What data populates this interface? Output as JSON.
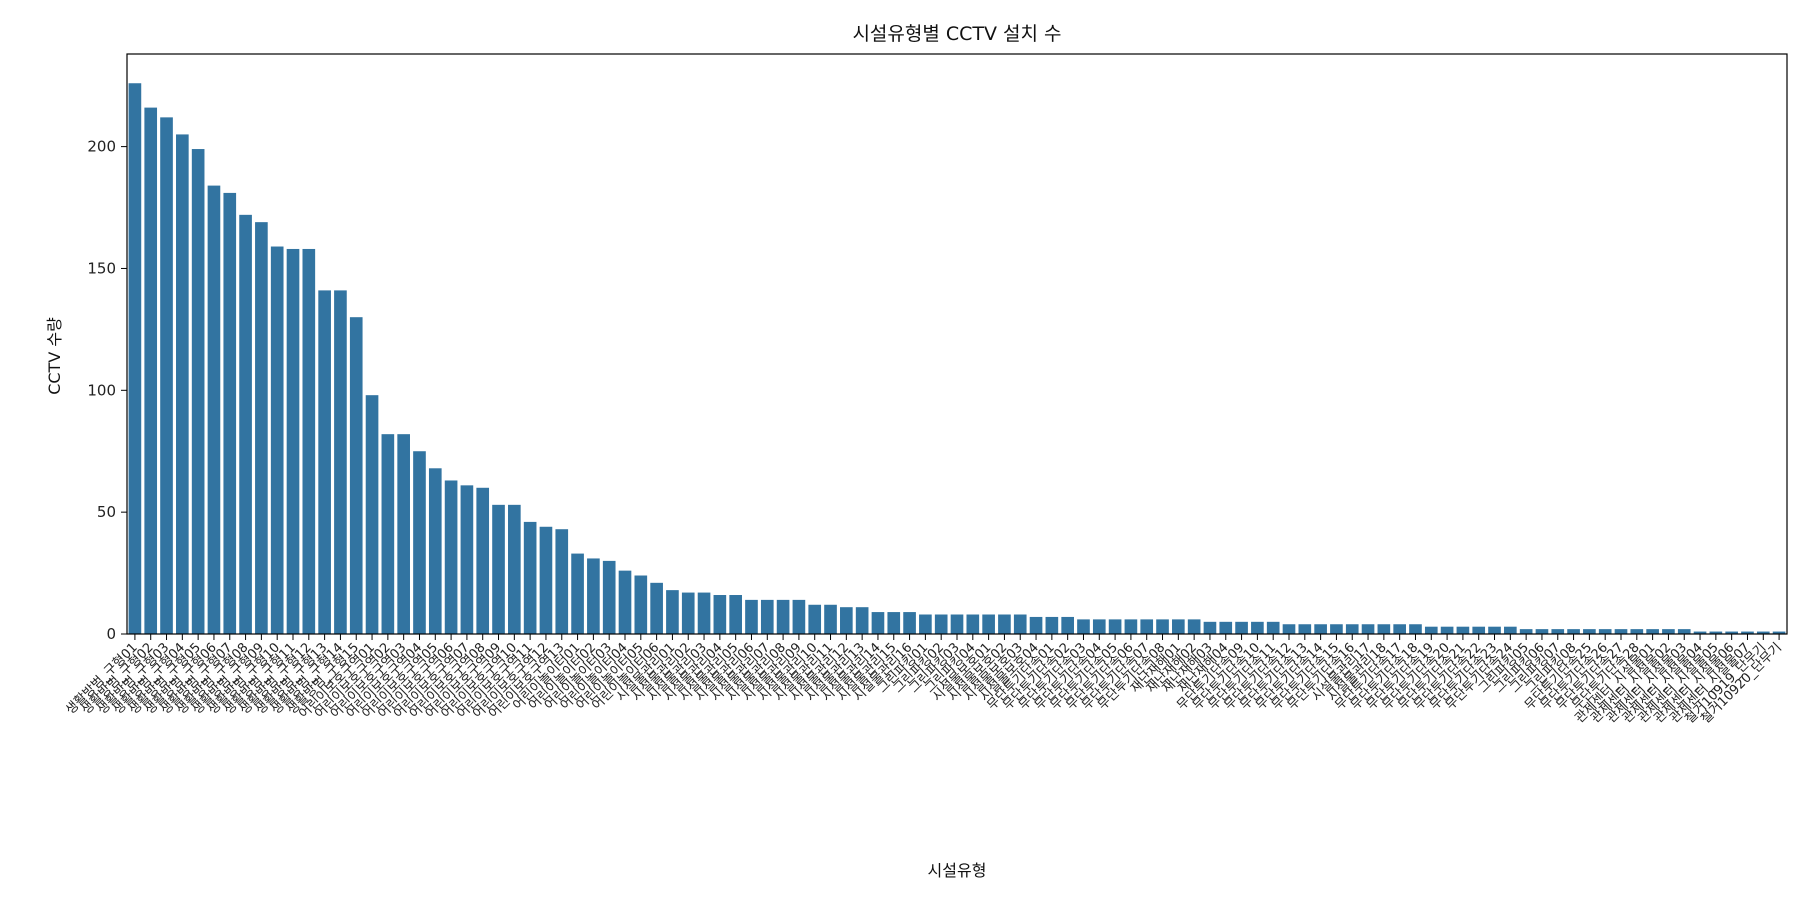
{
  "chart_data": {
    "type": "bar",
    "title": "시설유형별 CCTV 설치 수",
    "xlabel": "시설유형",
    "ylabel": "CCTV 수량",
    "ylim": [
      0,
      238
    ],
    "yticks": [
      0,
      50,
      100,
      150,
      200
    ],
    "grid": false,
    "legend": "none",
    "bar_color": "#3274a1",
    "categories": [
      "생활방범_구형01",
      "생활방범_구형02",
      "생활방범_구형03",
      "생활방범_구형04",
      "생활방범_구형05",
      "생활방범_구형06",
      "생활방범_구형07",
      "생활방범_구형08",
      "생활방범_구형09",
      "생활방범_구형10",
      "생활방범_구형11",
      "생활방범_구형12",
      "생활방범_구형13",
      "생활방범_구형14",
      "생활방범_구형15",
      "어린이보호구역01",
      "어린이보호구역02",
      "어린이보호구역03",
      "어린이보호구역04",
      "어린이보호구역05",
      "어린이보호구역06",
      "어린이보호구역07",
      "어린이보호구역08",
      "어린이보호구역09",
      "어린이보호구역10",
      "어린이보호구역11",
      "어린이보호구역12",
      "어린이보호구역13",
      "어린이놀이터01",
      "어린이놀이터02",
      "어린이놀이터03",
      "어린이놀이터04",
      "어린이놀이터05",
      "어린이놀이터06",
      "시설물관리01",
      "시설물관리02",
      "시설물관리03",
      "시설물관리04",
      "시설물관리05",
      "시설물관리06",
      "시설물관리07",
      "시설물관리08",
      "시설물관리09",
      "시설물관리10",
      "시설물관리11",
      "시설물관리12",
      "시설물관리13",
      "시설물관리14",
      "시설물관리15",
      "시설물관리16",
      "그린파킹01",
      "그린파킹02",
      "그린파킹03",
      "그린파킹04",
      "시설물보호01",
      "시설물보호02",
      "시설물보호03",
      "시설물보호04",
      "무단투기단속01",
      "무단투기단속02",
      "무단투기단속03",
      "무단투기단속04",
      "무단투기단속05",
      "무단투기단속06",
      "무단투기단속07",
      "무단투기단속08",
      "재난재해01",
      "재난재해02",
      "재난재해03",
      "재난재해04",
      "무단투기단속09",
      "무단투기단속10",
      "무단투기단속11",
      "무단투기단속12",
      "무단투기단속13",
      "무단투기단속14",
      "무단투기단속15",
      "무단투기단속16",
      "시설물관리17",
      "시설물관리18",
      "무단투기단속17",
      "무단투기단속18",
      "무단투기단속19",
      "무단투기단속20",
      "무단투기단속21",
      "무단투기단속22",
      "무단투기단속23",
      "무단투기단속24",
      "그린파킹05",
      "그린파킹06",
      "그린파킹07",
      "그린파킹08",
      "무단투기단속25",
      "무단투기단속26",
      "무단투기단속27",
      "무단투기단속28",
      "관제센터_시설물01",
      "관제센터_시설물02",
      "관제센터_시설물03",
      "관제센터_시설물04",
      "관제센터_시설물05",
      "관제센터_시설물06",
      "관제센터_시설물07",
      "철거10919_단무기",
      "철거10920_단무기"
    ],
    "values": [
      226,
      216,
      212,
      205,
      199,
      184,
      181,
      172,
      169,
      159,
      158,
      158,
      141,
      141,
      130,
      98,
      82,
      82,
      75,
      68,
      63,
      61,
      60,
      53,
      53,
      46,
      44,
      43,
      33,
      31,
      30,
      26,
      24,
      21,
      18,
      17,
      17,
      16,
      16,
      14,
      14,
      14,
      14,
      12,
      12,
      11,
      11,
      9,
      9,
      9,
      8,
      8,
      8,
      8,
      8,
      8,
      8,
      7,
      7,
      7,
      6,
      6,
      6,
      6,
      6,
      6,
      6,
      6,
      5,
      5,
      5,
      5,
      5,
      4,
      4,
      4,
      4,
      4,
      4,
      4,
      4,
      4,
      3,
      3,
      3,
      3,
      3,
      3,
      2,
      2,
      2,
      2,
      2,
      2,
      2,
      2,
      2,
      2,
      2,
      1,
      1,
      1,
      1,
      1,
      1
    ]
  }
}
